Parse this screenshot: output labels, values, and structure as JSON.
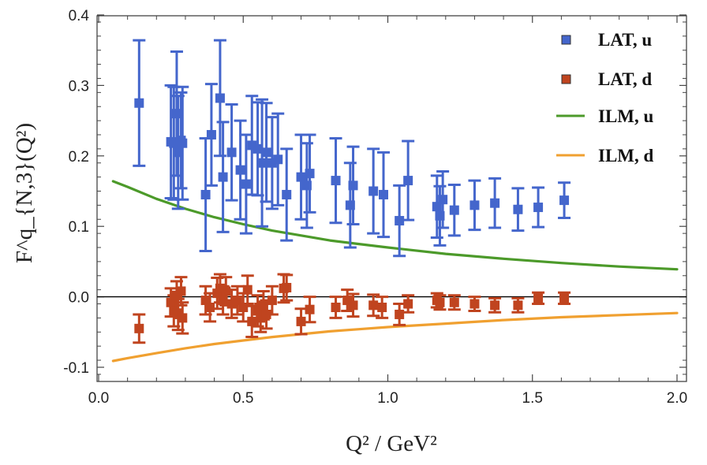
{
  "chart_data": {
    "type": "scatter",
    "title": "",
    "xlabel": "Q² / GeV²",
    "ylabel": "F^q_{N,3}(Q²)",
    "xlim": [
      0.0,
      2.0
    ],
    "ylim": [
      -0.12,
      0.4
    ],
    "xticks": [
      "0.0",
      "0.5",
      "1.0",
      "1.5",
      "2.0"
    ],
    "xtick_values": [
      0.0,
      0.5,
      1.0,
      1.5,
      2.0
    ],
    "yticks": [
      "-0.1",
      "0.0",
      "0.1",
      "0.2",
      "0.3",
      "0.4"
    ],
    "ytick_values": [
      -0.1,
      0.0,
      0.1,
      0.2,
      0.3,
      0.4
    ],
    "zero_line": true,
    "legend_position": "top-right",
    "legend": [
      {
        "label": "LAT, u",
        "kind": "marker",
        "color": "#4466cc"
      },
      {
        "label": "LAT, d",
        "kind": "marker",
        "color": "#c0441f"
      },
      {
        "label": "ILM, u",
        "kind": "line",
        "color": "#4c9a2a"
      },
      {
        "label": "ILM, d",
        "kind": "line",
        "color": "#f0a030"
      }
    ],
    "series": [
      {
        "name": "LAT, u",
        "kind": "errorbar",
        "color": "#4466cc",
        "points": [
          {
            "x": 0.14,
            "y": 0.275,
            "err": 0.089
          },
          {
            "x": 0.25,
            "y": 0.22,
            "err": 0.08
          },
          {
            "x": 0.26,
            "y": 0.218,
            "err": 0.08
          },
          {
            "x": 0.27,
            "y": 0.26,
            "err": 0.088
          },
          {
            "x": 0.275,
            "y": 0.205,
            "err": 0.08
          },
          {
            "x": 0.285,
            "y": 0.222,
            "err": 0.068
          },
          {
            "x": 0.29,
            "y": 0.218,
            "err": 0.08
          },
          {
            "x": 0.37,
            "y": 0.145,
            "err": 0.08
          },
          {
            "x": 0.39,
            "y": 0.23,
            "err": 0.072
          },
          {
            "x": 0.42,
            "y": 0.282,
            "err": 0.082
          },
          {
            "x": 0.43,
            "y": 0.17,
            "err": 0.078
          },
          {
            "x": 0.46,
            "y": 0.205,
            "err": 0.068
          },
          {
            "x": 0.49,
            "y": 0.18,
            "err": 0.07
          },
          {
            "x": 0.51,
            "y": 0.16,
            "err": 0.07
          },
          {
            "x": 0.53,
            "y": 0.215,
            "err": 0.07
          },
          {
            "x": 0.55,
            "y": 0.21,
            "err": 0.066
          },
          {
            "x": 0.565,
            "y": 0.19,
            "err": 0.09
          },
          {
            "x": 0.58,
            "y": 0.205,
            "err": 0.07
          },
          {
            "x": 0.6,
            "y": 0.19,
            "err": 0.065
          },
          {
            "x": 0.62,
            "y": 0.195,
            "err": 0.065
          },
          {
            "x": 0.65,
            "y": 0.145,
            "err": 0.065
          },
          {
            "x": 0.7,
            "y": 0.17,
            "err": 0.06
          },
          {
            "x": 0.72,
            "y": 0.158,
            "err": 0.06
          },
          {
            "x": 0.73,
            "y": 0.175,
            "err": 0.055
          },
          {
            "x": 0.82,
            "y": 0.165,
            "err": 0.06
          },
          {
            "x": 0.87,
            "y": 0.13,
            "err": 0.06
          },
          {
            "x": 0.88,
            "y": 0.158,
            "err": 0.055
          },
          {
            "x": 0.95,
            "y": 0.15,
            "err": 0.06
          },
          {
            "x": 0.985,
            "y": 0.145,
            "err": 0.06
          },
          {
            "x": 1.04,
            "y": 0.108,
            "err": 0.05
          },
          {
            "x": 1.07,
            "y": 0.165,
            "err": 0.056
          },
          {
            "x": 1.17,
            "y": 0.128,
            "err": 0.044
          },
          {
            "x": 1.18,
            "y": 0.115,
            "err": 0.042
          },
          {
            "x": 1.19,
            "y": 0.138,
            "err": 0.04
          },
          {
            "x": 1.23,
            "y": 0.123,
            "err": 0.036
          },
          {
            "x": 1.3,
            "y": 0.13,
            "err": 0.035
          },
          {
            "x": 1.37,
            "y": 0.133,
            "err": 0.035
          },
          {
            "x": 1.45,
            "y": 0.124,
            "err": 0.03
          },
          {
            "x": 1.52,
            "y": 0.127,
            "err": 0.028
          },
          {
            "x": 1.61,
            "y": 0.137,
            "err": 0.025
          }
        ]
      },
      {
        "name": "LAT, d",
        "kind": "errorbar",
        "color": "#c0441f",
        "points": [
          {
            "x": 0.14,
            "y": -0.045,
            "err": 0.02
          },
          {
            "x": 0.25,
            "y": -0.008,
            "err": 0.02
          },
          {
            "x": 0.26,
            "y": -0.02,
            "err": 0.022
          },
          {
            "x": 0.27,
            "y": 0.002,
            "err": 0.02
          },
          {
            "x": 0.275,
            "y": -0.025,
            "err": 0.022
          },
          {
            "x": 0.285,
            "y": 0.008,
            "err": 0.02
          },
          {
            "x": 0.29,
            "y": -0.03,
            "err": 0.022
          },
          {
            "x": 0.37,
            "y": -0.005,
            "err": 0.02
          },
          {
            "x": 0.385,
            "y": -0.015,
            "err": 0.02
          },
          {
            "x": 0.41,
            "y": 0.005,
            "err": 0.022
          },
          {
            "x": 0.42,
            "y": 0.012,
            "err": 0.02
          },
          {
            "x": 0.43,
            "y": -0.005,
            "err": 0.02
          },
          {
            "x": 0.44,
            "y": 0.008,
            "err": 0.02
          },
          {
            "x": 0.46,
            "y": -0.01,
            "err": 0.02
          },
          {
            "x": 0.48,
            "y": -0.005,
            "err": 0.02
          },
          {
            "x": 0.5,
            "y": -0.015,
            "err": 0.02
          },
          {
            "x": 0.515,
            "y": 0.01,
            "err": 0.02
          },
          {
            "x": 0.53,
            "y": -0.035,
            "err": 0.022
          },
          {
            "x": 0.55,
            "y": -0.02,
            "err": 0.022
          },
          {
            "x": 0.56,
            "y": -0.03,
            "err": 0.02
          },
          {
            "x": 0.57,
            "y": -0.012,
            "err": 0.02
          },
          {
            "x": 0.58,
            "y": -0.025,
            "err": 0.02
          },
          {
            "x": 0.6,
            "y": -0.005,
            "err": 0.02
          },
          {
            "x": 0.64,
            "y": 0.012,
            "err": 0.02
          },
          {
            "x": 0.65,
            "y": 0.013,
            "err": 0.018
          },
          {
            "x": 0.7,
            "y": -0.035,
            "err": 0.018
          },
          {
            "x": 0.73,
            "y": -0.018,
            "err": 0.018
          },
          {
            "x": 0.82,
            "y": -0.015,
            "err": 0.015
          },
          {
            "x": 0.86,
            "y": -0.005,
            "err": 0.015
          },
          {
            "x": 0.88,
            "y": -0.012,
            "err": 0.016
          },
          {
            "x": 0.95,
            "y": -0.012,
            "err": 0.015
          },
          {
            "x": 0.98,
            "y": -0.015,
            "err": 0.015
          },
          {
            "x": 1.04,
            "y": -0.025,
            "err": 0.015
          },
          {
            "x": 1.07,
            "y": -0.01,
            "err": 0.012
          },
          {
            "x": 1.17,
            "y": -0.005,
            "err": 0.01
          },
          {
            "x": 1.18,
            "y": -0.008,
            "err": 0.01
          },
          {
            "x": 1.23,
            "y": -0.008,
            "err": 0.01
          },
          {
            "x": 1.3,
            "y": -0.01,
            "err": 0.01
          },
          {
            "x": 1.37,
            "y": -0.012,
            "err": 0.01
          },
          {
            "x": 1.45,
            "y": -0.012,
            "err": 0.01
          },
          {
            "x": 1.52,
            "y": -0.002,
            "err": 0.008
          },
          {
            "x": 1.61,
            "y": -0.002,
            "err": 0.008
          }
        ]
      },
      {
        "name": "ILM, u",
        "kind": "line",
        "color": "#4c9a2a",
        "x": [
          0.05,
          0.1,
          0.2,
          0.3,
          0.4,
          0.5,
          0.6,
          0.7,
          0.8,
          0.9,
          1.0,
          1.2,
          1.4,
          1.6,
          1.8,
          2.0
        ],
        "y": [
          0.164,
          0.156,
          0.139,
          0.125,
          0.113,
          0.103,
          0.094,
          0.087,
          0.08,
          0.075,
          0.07,
          0.061,
          0.054,
          0.048,
          0.043,
          0.039
        ]
      },
      {
        "name": "ILM, d",
        "kind": "line",
        "color": "#f0a030",
        "x": [
          0.05,
          0.1,
          0.2,
          0.3,
          0.4,
          0.5,
          0.6,
          0.7,
          0.8,
          0.9,
          1.0,
          1.2,
          1.4,
          1.6,
          1.8,
          2.0
        ],
        "y": [
          -0.091,
          -0.087,
          -0.08,
          -0.073,
          -0.067,
          -0.062,
          -0.057,
          -0.053,
          -0.049,
          -0.046,
          -0.043,
          -0.038,
          -0.033,
          -0.029,
          -0.026,
          -0.023
        ]
      }
    ]
  }
}
